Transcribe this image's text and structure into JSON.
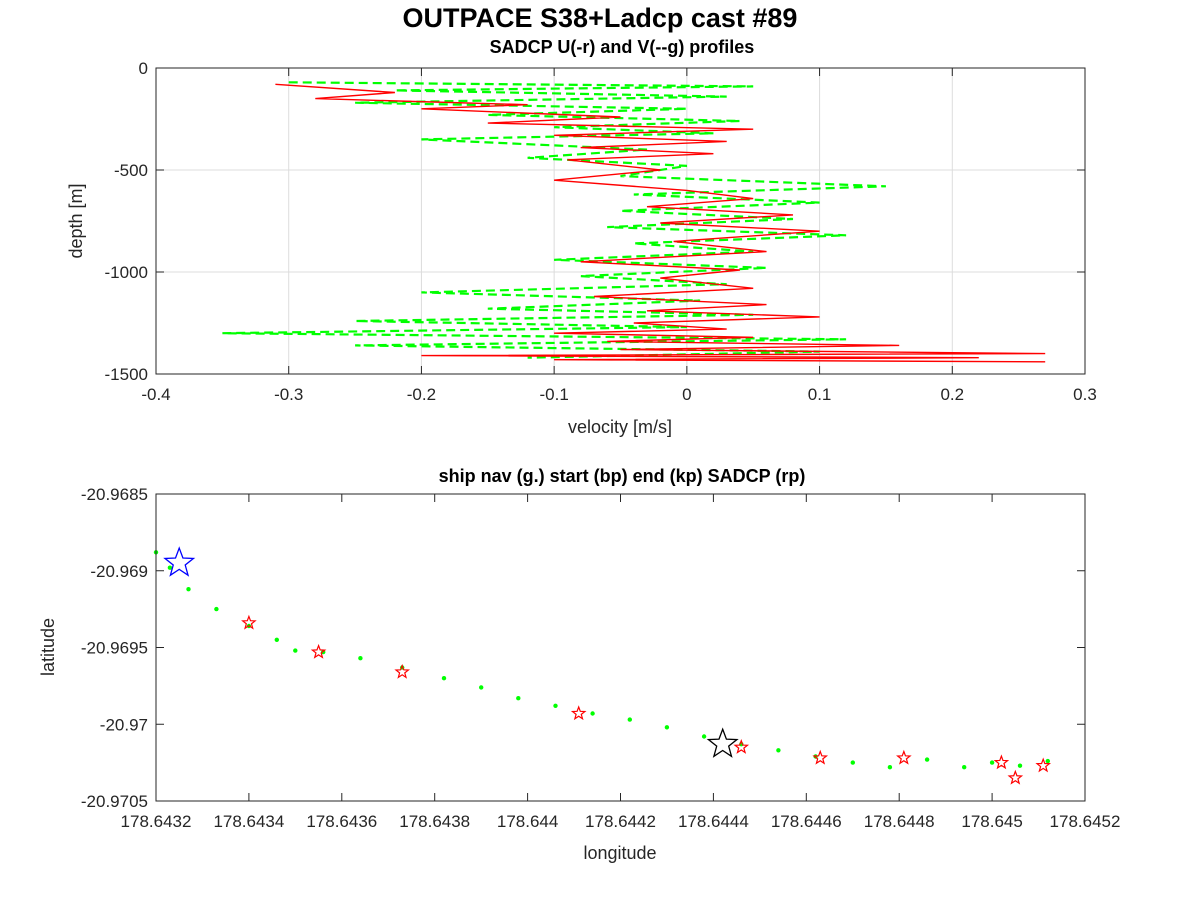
{
  "figure": {
    "suptitle": "OUTPACE S38+Ladcp cast #89"
  },
  "colors": {
    "u_profile": "#ff0000",
    "v_profile": "#00ff00",
    "ship_nav": "#00ff00",
    "start_marker": "#0000ff",
    "end_marker": "#000000",
    "sadcp_marker": "#ff0000",
    "grid": "#dcdcdc"
  },
  "chart_data": [
    {
      "type": "line",
      "title": "SADCP U(-r) and V(--g) profiles",
      "xlabel": "velocity [m/s]",
      "ylabel": "depth [m]",
      "xlim": [
        -0.4,
        0.3
      ],
      "ylim": [
        -1500,
        0
      ],
      "grid": true,
      "xticks": [
        "-0.4",
        "-0.3",
        "-0.2",
        "-0.1",
        "0",
        "0.1",
        "0.2",
        "0.3"
      ],
      "yticks": [
        "0",
        "-500",
        "-1000",
        "-1500"
      ],
      "series": [
        {
          "style": "solid-red",
          "x": [
            -0.31,
            -0.22,
            -0.28,
            -0.12,
            -0.2,
            -0.05,
            -0.15,
            0.05,
            -0.1,
            0.03,
            -0.08,
            0.02,
            -0.09,
            -0.02,
            -0.1,
            0.0,
            0.05,
            -0.03,
            0.08,
            -0.02,
            0.1,
            -0.01,
            0.06,
            -0.08,
            0.04,
            -0.02,
            0.05,
            -0.07,
            0.06,
            -0.03,
            0.1,
            -0.04,
            0.03,
            -0.1,
            0.05,
            -0.06,
            0.16,
            -0.05,
            0.27,
            -0.2,
            0.22,
            -0.1,
            0.27
          ],
          "y": [
            -80,
            -120,
            -150,
            -180,
            -200,
            -240,
            -270,
            -300,
            -330,
            -360,
            -390,
            -420,
            -450,
            -500,
            -550,
            -600,
            -640,
            -680,
            -720,
            -760,
            -800,
            -850,
            -900,
            -950,
            -990,
            -1030,
            -1080,
            -1120,
            -1160,
            -1190,
            -1220,
            -1250,
            -1280,
            -1300,
            -1320,
            -1340,
            -1360,
            -1380,
            -1400,
            -1410,
            -1420,
            -1430,
            -1440
          ]
        },
        {
          "style": "dashed-green",
          "x": [
            -0.3,
            0.05,
            -0.22,
            0.03,
            -0.25,
            0.0,
            -0.15,
            0.04,
            -0.1,
            0.02,
            -0.2,
            -0.03,
            -0.12,
            0.0,
            -0.05,
            0.15,
            -0.04,
            0.1,
            -0.05,
            0.08,
            -0.06,
            0.12,
            -0.04,
            0.05,
            -0.1,
            0.06,
            -0.08,
            0.03,
            -0.2,
            0.01,
            -0.15,
            0.05,
            -0.25,
            0.0,
            -0.35,
            0.12,
            -0.25,
            0.1,
            -0.12
          ],
          "y": [
            -70,
            -90,
            -110,
            -140,
            -170,
            -200,
            -230,
            -260,
            -290,
            -320,
            -350,
            -400,
            -440,
            -480,
            -530,
            -580,
            -620,
            -660,
            -700,
            -740,
            -780,
            -820,
            -860,
            -900,
            -940,
            -980,
            -1020,
            -1060,
            -1100,
            -1140,
            -1180,
            -1210,
            -1240,
            -1270,
            -1300,
            -1330,
            -1360,
            -1390,
            -1420
          ]
        }
      ]
    },
    {
      "type": "scatter",
      "title": "ship nav (g.) start (bp) end (kp) SADCP (rp)",
      "xlabel": "longitude",
      "ylabel": "latitude",
      "xlim": [
        178.6432,
        178.6452
      ],
      "ylim": [
        -20.9705,
        -20.9685
      ],
      "grid": false,
      "xticks": [
        "178.6432",
        "178.6434",
        "178.6436",
        "178.6438",
        "178.644",
        "178.6442",
        "178.6444",
        "178.6446",
        "178.6448",
        "178.645",
        "178.6452"
      ],
      "yticks": [
        "-20.9685",
        "-20.969",
        "-20.9695",
        "-20.97",
        "-20.9705"
      ],
      "ship_nav_track": {
        "x": [
          178.6432,
          178.64323,
          178.64327,
          178.64333,
          178.6434,
          178.64346,
          178.6435,
          178.64356,
          178.64364,
          178.64373,
          178.64382,
          178.6439,
          178.64398,
          178.64406,
          178.64414,
          178.64422,
          178.6443,
          178.64438,
          178.64446,
          178.64454,
          178.64462,
          178.6447,
          178.64478,
          178.64486,
          178.64494,
          178.645,
          178.64506,
          178.64512
        ],
        "y": [
          -20.96888,
          -20.96898,
          -20.96912,
          -20.96925,
          -20.96936,
          -20.96945,
          -20.96952,
          -20.96953,
          -20.96957,
          -20.96963,
          -20.9697,
          -20.96976,
          -20.96983,
          -20.96988,
          -20.96993,
          -20.96997,
          -20.97002,
          -20.97008,
          -20.97013,
          -20.97017,
          -20.97021,
          -20.97025,
          -20.97028,
          -20.97023,
          -20.97028,
          -20.97025,
          -20.97027,
          -20.97024
        ]
      },
      "start": {
        "x": 178.64325,
        "y": -20.96895
      },
      "end": {
        "x": 178.64442,
        "y": -20.97013
      },
      "sadcp_points": {
        "x": [
          178.6434,
          178.64355,
          178.64373,
          178.64411,
          178.64446,
          178.64463,
          178.64481,
          178.64502,
          178.64505,
          178.64511
        ],
        "y": [
          -20.96934,
          -20.96953,
          -20.96966,
          -20.96993,
          -20.97015,
          -20.97022,
          -20.97022,
          -20.97025,
          -20.97035,
          -20.97027
        ]
      }
    }
  ]
}
